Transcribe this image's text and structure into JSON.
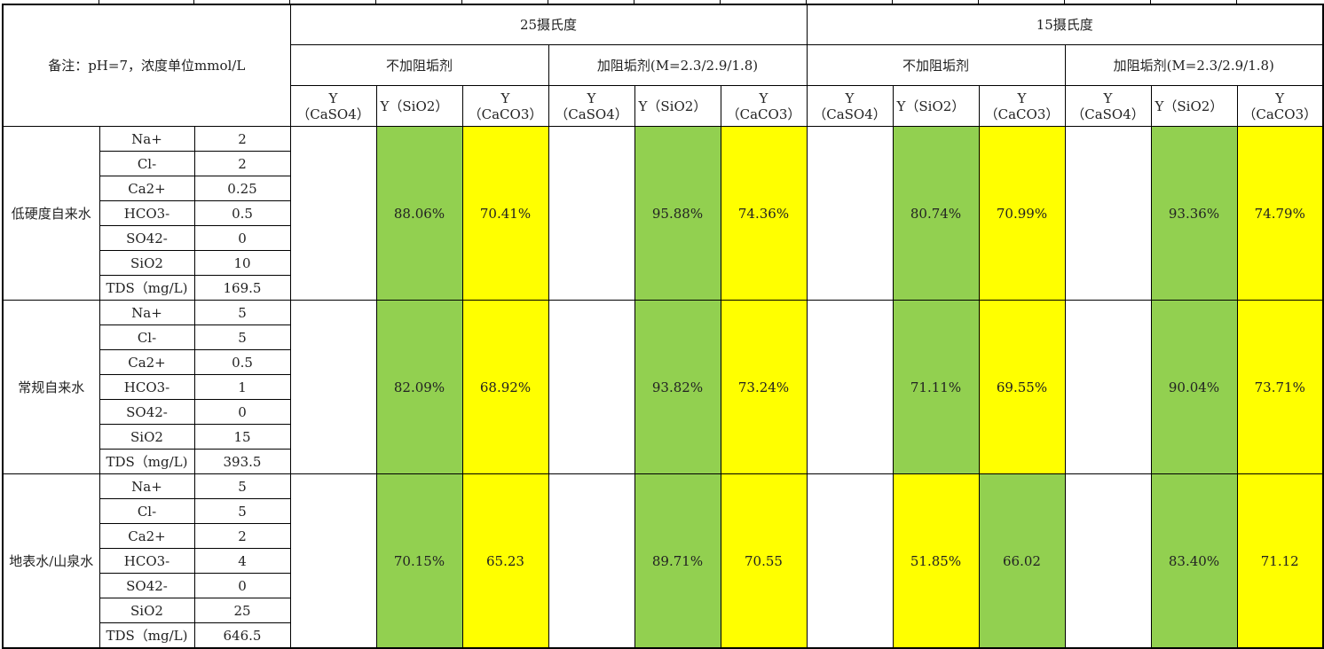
{
  "note": "备注：pH=7，浓度单位mmol/L",
  "temperatures": [
    {
      "label": "25摄氏度",
      "groups": [
        {
          "label": "不加阻垢剂",
          "columns": [
            "Y（CaSO4）",
            "Y（SiO2）",
            "Y（CaCO3）"
          ]
        },
        {
          "label": "加阻垢剂(M=2.3/2.9/1.8)",
          "columns": [
            "Y（CaSO4）",
            "Y（SiO2）",
            "Y（CaCO3）"
          ]
        }
      ]
    },
    {
      "label": "15摄氏度",
      "groups": [
        {
          "label": "不加阻垢剂",
          "columns": [
            "Y（CaSO4）",
            "Y（SiO2）",
            "Y（CaCO3）"
          ]
        },
        {
          "label": "加阻垢剂(M=2.3/2.9/1.8)",
          "columns": [
            "Y（CaSO4）",
            "Y（SiO2）",
            "Y（CaCO3）"
          ]
        }
      ]
    }
  ],
  "col_headers": {
    "caso4_y": "Y",
    "caso4_sub": "（CaSO4）",
    "sio2": "Y（SiO2）",
    "caco3_y": "Y",
    "caco3_sub": "（CaCO3）"
  },
  "colors": {
    "green": "#92d050",
    "yellow": "#ffff00"
  },
  "samples": [
    {
      "name": "低硬度自来水",
      "params": [
        {
          "name": "Na+",
          "value": "2"
        },
        {
          "name": "Cl-",
          "value": "2"
        },
        {
          "name": "Ca2+",
          "value": "0.25"
        },
        {
          "name": "HCO3-",
          "value": "0.5"
        },
        {
          "name": "SO42-",
          "value": "0"
        },
        {
          "name": "SiO2",
          "value": "10"
        },
        {
          "name": "TDS（mg/L)",
          "value": "169.5"
        }
      ],
      "results": [
        {
          "value": "",
          "color": "blank"
        },
        {
          "value": "88.06%",
          "color": "green"
        },
        {
          "value": "70.41%",
          "color": "yellow"
        },
        {
          "value": "",
          "color": "blank"
        },
        {
          "value": "95.88%",
          "color": "green"
        },
        {
          "value": "74.36%",
          "color": "yellow"
        },
        {
          "value": "",
          "color": "blank"
        },
        {
          "value": "80.74%",
          "color": "green"
        },
        {
          "value": "70.99%",
          "color": "yellow"
        },
        {
          "value": "",
          "color": "blank"
        },
        {
          "value": "93.36%",
          "color": "green"
        },
        {
          "value": "74.79%",
          "color": "yellow"
        }
      ]
    },
    {
      "name": "常规自来水",
      "params": [
        {
          "name": "Na+",
          "value": "5"
        },
        {
          "name": "Cl-",
          "value": "5"
        },
        {
          "name": "Ca2+",
          "value": "0.5"
        },
        {
          "name": "HCO3-",
          "value": "1"
        },
        {
          "name": "SO42-",
          "value": "0"
        },
        {
          "name": "SiO2",
          "value": "15"
        },
        {
          "name": "TDS（mg/L)",
          "value": "393.5"
        }
      ],
      "results": [
        {
          "value": "",
          "color": "blank"
        },
        {
          "value": "82.09%",
          "color": "green"
        },
        {
          "value": "68.92%",
          "color": "yellow"
        },
        {
          "value": "",
          "color": "blank"
        },
        {
          "value": "93.82%",
          "color": "green"
        },
        {
          "value": "73.24%",
          "color": "yellow"
        },
        {
          "value": "",
          "color": "blank"
        },
        {
          "value": "71.11%",
          "color": "green"
        },
        {
          "value": "69.55%",
          "color": "yellow"
        },
        {
          "value": "",
          "color": "blank"
        },
        {
          "value": "90.04%",
          "color": "green"
        },
        {
          "value": "73.71%",
          "color": "yellow"
        }
      ]
    },
    {
      "name": "地表水/山泉水",
      "params": [
        {
          "name": "Na+",
          "value": "5"
        },
        {
          "name": "Cl-",
          "value": "5"
        },
        {
          "name": "Ca2+",
          "value": "2"
        },
        {
          "name": "HCO3-",
          "value": "4"
        },
        {
          "name": "SO42-",
          "value": "0"
        },
        {
          "name": "SiO2",
          "value": "25"
        },
        {
          "name": "TDS（mg/L)",
          "value": "646.5"
        }
      ],
      "results": [
        {
          "value": "",
          "color": "blank"
        },
        {
          "value": "70.15%",
          "color": "green"
        },
        {
          "value": "65.23",
          "color": "yellow"
        },
        {
          "value": "",
          "color": "blank"
        },
        {
          "value": "89.71%",
          "color": "green"
        },
        {
          "value": "70.55",
          "color": "yellow"
        },
        {
          "value": "",
          "color": "blank"
        },
        {
          "value": "51.85%",
          "color": "yellow"
        },
        {
          "value": "66.02",
          "color": "green"
        },
        {
          "value": "",
          "color": "blank"
        },
        {
          "value": "83.40%",
          "color": "green"
        },
        {
          "value": "71.12",
          "color": "yellow"
        }
      ]
    }
  ]
}
